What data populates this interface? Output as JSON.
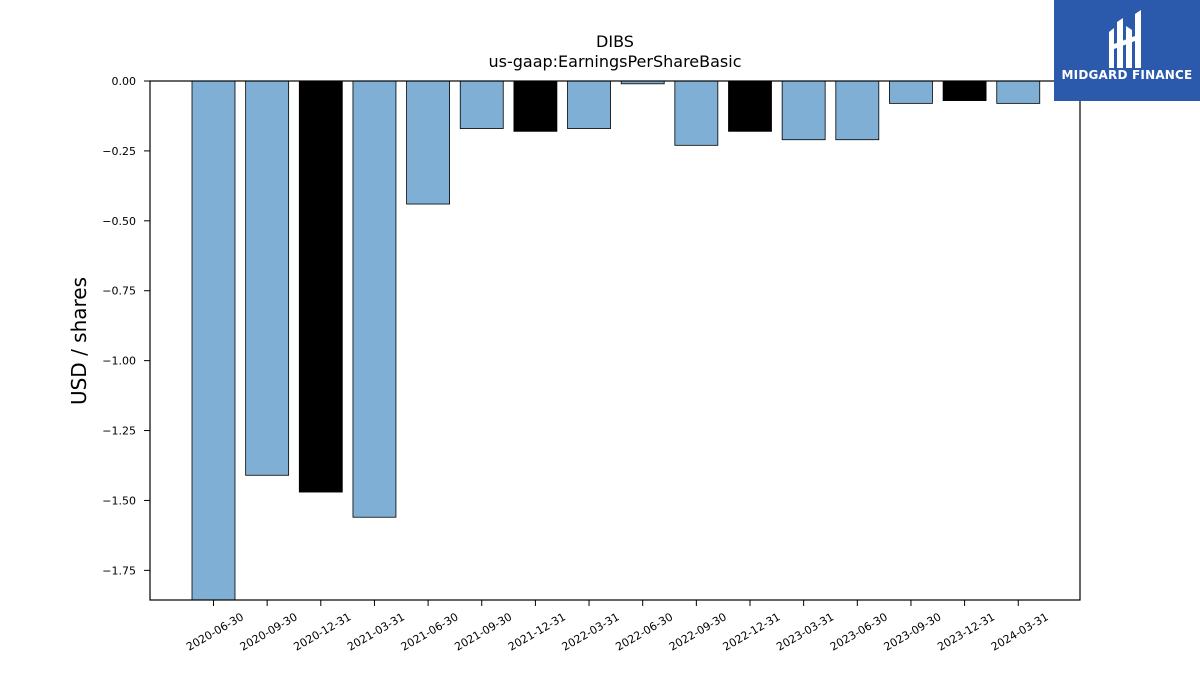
{
  "chart_data": {
    "type": "bar",
    "title": "DIBS",
    "subtitle": "us-gaap:EarningsPerShareBasic",
    "xlabel": "",
    "ylabel": "USD / shares",
    "ylim": [
      -1.856,
      0.0
    ],
    "yticks": [
      0.0,
      -0.25,
      -0.5,
      -0.75,
      -1.0,
      -1.25,
      -1.5,
      -1.75
    ],
    "ytick_labels": [
      "0.00",
      "−0.25",
      "−0.50",
      "−0.75",
      "−1.00",
      "−1.25",
      "−1.50",
      "−1.75"
    ],
    "grid": false,
    "categories": [
      "2020-06-30",
      "2020-09-30",
      "2020-12-31",
      "2021-03-31",
      "2021-06-30",
      "2021-09-30",
      "2021-12-31",
      "2022-03-31",
      "2022-06-30",
      "2022-09-30",
      "2022-12-31",
      "2023-03-31",
      "2023-06-30",
      "2023-09-30",
      "2023-12-31",
      "2024-03-31"
    ],
    "values": [
      -1.86,
      -1.41,
      -1.47,
      -1.56,
      -0.44,
      -0.17,
      -0.18,
      -0.17,
      -0.01,
      -0.23,
      -0.18,
      -0.21,
      -0.21,
      -0.08,
      -0.07,
      -0.08
    ],
    "colors": [
      "#7fafd4",
      "#7fafd4",
      "#000000",
      "#7fafd4",
      "#7fafd4",
      "#7fafd4",
      "#000000",
      "#7fafd4",
      "#7fafd4",
      "#7fafd4",
      "#000000",
      "#7fafd4",
      "#7fafd4",
      "#7fafd4",
      "#000000",
      "#7fafd4"
    ]
  },
  "logo": {
    "text": "MIDGARD FINANCE",
    "background": "#2b5aad",
    "foreground": "#ffffff"
  }
}
